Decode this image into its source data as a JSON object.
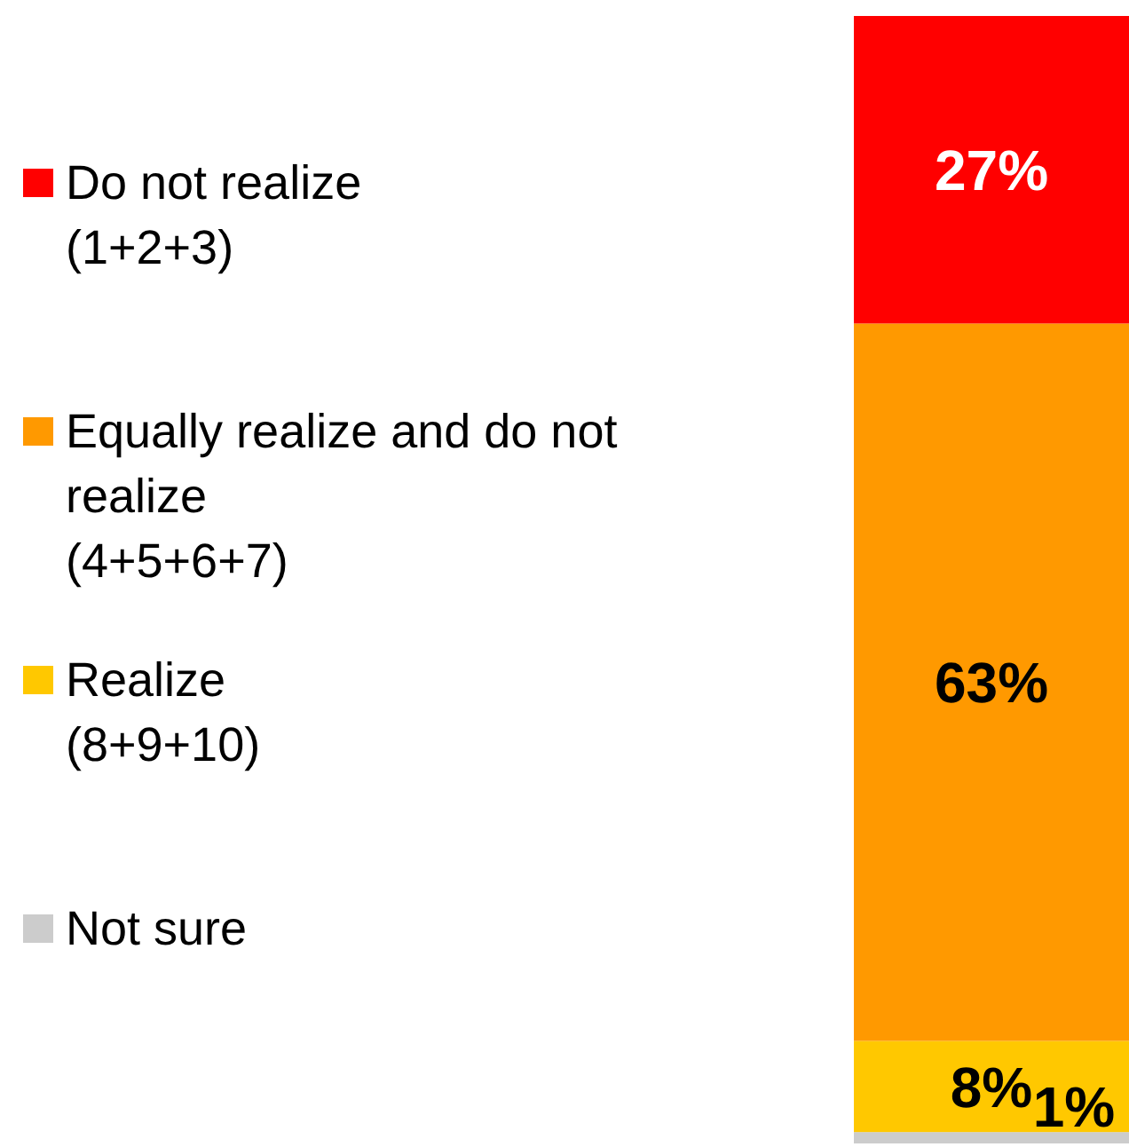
{
  "chart_data": {
    "type": "bar",
    "stacked": true,
    "categories": [
      null
    ],
    "series": [
      {
        "name": "Not sure",
        "color": "#cccccc",
        "values": [
          1
        ],
        "value_labels": [
          "1%"
        ]
      },
      {
        "name": "Realize\n(8+9+10)",
        "color": "#ffc800",
        "values": [
          8
        ],
        "value_labels": [
          "8%"
        ]
      },
      {
        "name": "Equally realize and do not realize\n(4+5+6+7)",
        "color": "#ff9900",
        "values": [
          63
        ],
        "value_labels": [
          "63%"
        ]
      },
      {
        "name": "Do not realize\n(1+2+3)",
        "color": "#ff0000",
        "values": [
          27
        ],
        "value_labels": [
          "27%"
        ]
      }
    ],
    "legend": "left"
  }
}
